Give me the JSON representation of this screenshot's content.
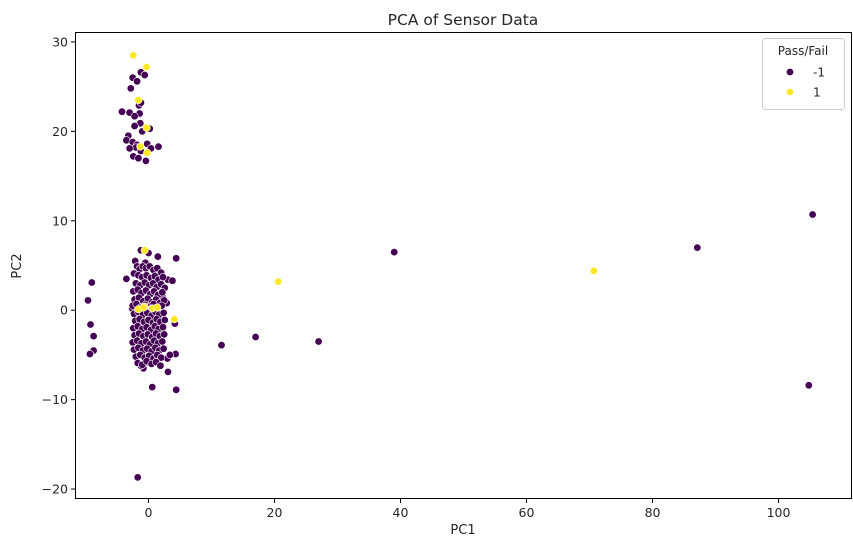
{
  "chart_data": {
    "type": "scatter",
    "title": "PCA of Sensor Data",
    "xlabel": "PC1",
    "ylabel": "PC2",
    "xlim": [
      -11.5,
      111.5
    ],
    "ylim": [
      -21,
      31
    ],
    "x_ticks": [
      0,
      20,
      40,
      60,
      80,
      100
    ],
    "y_ticks": [
      -20,
      -10,
      0,
      10,
      20,
      30
    ],
    "grid": false,
    "legend": {
      "title": "Pass/Fail",
      "placement": "top-right"
    },
    "series": [
      {
        "name": "-1",
        "color": "#440154",
        "points": [
          [
            -2.5,
            26.0
          ],
          [
            -1.2,
            26.6
          ],
          [
            -0.6,
            26.3
          ],
          [
            -1.8,
            25.6
          ],
          [
            -2.8,
            24.8
          ],
          [
            -1.5,
            22.9
          ],
          [
            -1.4,
            22.0
          ],
          [
            -4.2,
            22.2
          ],
          [
            -3.0,
            22.1
          ],
          [
            -2.2,
            21.7
          ],
          [
            -1.3,
            20.9
          ],
          [
            -2.2,
            20.6
          ],
          [
            0.2,
            20.3
          ],
          [
            -1.0,
            20.0
          ],
          [
            -3.2,
            19.5
          ],
          [
            -3.5,
            19.0
          ],
          [
            -2.5,
            18.8
          ],
          [
            -1.8,
            18.5
          ],
          [
            -0.2,
            18.6
          ],
          [
            -2.0,
            18.2
          ],
          [
            -3.0,
            18.1
          ],
          [
            0.4,
            18.1
          ],
          [
            1.6,
            18.3
          ],
          [
            -1.2,
            17.8
          ],
          [
            -2.4,
            17.2
          ],
          [
            -0.4,
            16.7
          ],
          [
            -1.6,
            17.0
          ],
          [
            -1.2,
            23.2
          ],
          [
            -3.5,
            3.5
          ],
          [
            -9.0,
            3.1
          ],
          [
            -9.6,
            1.1
          ],
          [
            -9.2,
            -1.6
          ],
          [
            -8.7,
            -2.9
          ],
          [
            -8.7,
            -4.5
          ],
          [
            -9.3,
            -4.9
          ],
          [
            -1.2,
            6.7
          ],
          [
            0.0,
            6.4
          ],
          [
            1.5,
            6.0
          ],
          [
            4.4,
            5.8
          ],
          [
            -0.5,
            5.3
          ],
          [
            3.1,
            3.4
          ],
          [
            3.8,
            3.3
          ],
          [
            2.2,
            1.5
          ],
          [
            -2.6,
            0.2
          ],
          [
            2.9,
            0.8
          ],
          [
            4.2,
            -1.5
          ],
          [
            3.0,
            -5.4
          ],
          [
            4.3,
            -4.9
          ],
          [
            3.4,
            -5.0
          ],
          [
            3.1,
            -6.9
          ],
          [
            0.6,
            -8.6
          ],
          [
            4.4,
            -8.9
          ],
          [
            -0.8,
            -6.5
          ],
          [
            -1.2,
            -6.2
          ],
          [
            -0.3,
            -5.8
          ],
          [
            -1.7,
            -18.7
          ],
          [
            11.6,
            -3.9
          ],
          [
            17.0,
            -3.0
          ],
          [
            27.0,
            -3.5
          ],
          [
            39.0,
            6.5
          ],
          [
            87.1,
            7.0
          ],
          [
            105.4,
            10.7
          ],
          [
            104.8,
            -8.4
          ],
          [
            -2.1,
            5.5
          ],
          [
            -1.8,
            4.9
          ],
          [
            -1.4,
            4.6
          ],
          [
            -0.9,
            4.9
          ],
          [
            -0.4,
            4.7
          ],
          [
            0.2,
            4.9
          ],
          [
            0.8,
            4.5
          ],
          [
            1.4,
            4.7
          ],
          [
            2.0,
            4.2
          ],
          [
            -2.3,
            4.1
          ],
          [
            -1.6,
            3.9
          ],
          [
            -1.0,
            3.7
          ],
          [
            -0.3,
            3.9
          ],
          [
            0.4,
            3.6
          ],
          [
            1.0,
            3.8
          ],
          [
            1.6,
            3.4
          ],
          [
            2.3,
            3.7
          ],
          [
            -2.0,
            3.0
          ],
          [
            -1.3,
            2.8
          ],
          [
            -0.6,
            3.1
          ],
          [
            0.1,
            2.8
          ],
          [
            0.7,
            3.0
          ],
          [
            1.3,
            2.6
          ],
          [
            2.0,
            2.9
          ],
          [
            2.6,
            2.5
          ],
          [
            -2.4,
            2.1
          ],
          [
            -1.7,
            2.3
          ],
          [
            -1.1,
            1.9
          ],
          [
            -0.4,
            2.2
          ],
          [
            0.3,
            1.8
          ],
          [
            0.9,
            2.1
          ],
          [
            1.5,
            1.7
          ],
          [
            2.2,
            2.0
          ],
          [
            -2.2,
            1.2
          ],
          [
            -1.5,
            1.4
          ],
          [
            -0.8,
            1.0
          ],
          [
            -0.1,
            1.3
          ],
          [
            0.6,
            0.9
          ],
          [
            1.2,
            1.2
          ],
          [
            1.8,
            0.8
          ],
          [
            2.5,
            1.1
          ],
          [
            -2.5,
            0.5
          ],
          [
            -1.9,
            0.7
          ],
          [
            -1.2,
            0.3
          ],
          [
            -0.5,
            0.6
          ],
          [
            0.2,
            0.4
          ],
          [
            0.8,
            0.7
          ],
          [
            1.4,
            0.2
          ],
          [
            2.1,
            0.5
          ],
          [
            -2.3,
            -0.4
          ],
          [
            -1.6,
            -0.2
          ],
          [
            -0.9,
            -0.5
          ],
          [
            -0.2,
            -0.3
          ],
          [
            0.5,
            -0.6
          ],
          [
            1.1,
            -0.2
          ],
          [
            1.7,
            -0.5
          ],
          [
            2.4,
            -0.3
          ],
          [
            -2.1,
            -1.2
          ],
          [
            -1.4,
            -1.0
          ],
          [
            -0.7,
            -1.3
          ],
          [
            0.0,
            -1.1
          ],
          [
            0.7,
            -1.4
          ],
          [
            1.3,
            -1.0
          ],
          [
            1.9,
            -1.3
          ],
          [
            2.6,
            -1.1
          ],
          [
            -2.4,
            -2.0
          ],
          [
            -1.7,
            -1.8
          ],
          [
            -1.0,
            -2.1
          ],
          [
            -0.3,
            -1.9
          ],
          [
            0.4,
            -2.2
          ],
          [
            1.0,
            -1.8
          ],
          [
            1.6,
            -2.1
          ],
          [
            2.3,
            -1.9
          ],
          [
            -2.2,
            -2.8
          ],
          [
            -1.5,
            -2.6
          ],
          [
            -0.8,
            -2.9
          ],
          [
            -0.1,
            -2.7
          ],
          [
            0.6,
            -3.0
          ],
          [
            1.2,
            -2.6
          ],
          [
            1.8,
            -2.9
          ],
          [
            2.5,
            -2.7
          ],
          [
            -2.5,
            -3.6
          ],
          [
            -1.8,
            -3.4
          ],
          [
            -1.1,
            -3.7
          ],
          [
            -0.4,
            -3.5
          ],
          [
            0.3,
            -3.8
          ],
          [
            0.9,
            -3.4
          ],
          [
            1.5,
            -3.7
          ],
          [
            2.2,
            -3.5
          ],
          [
            -2.3,
            -4.4
          ],
          [
            -1.6,
            -4.2
          ],
          [
            -0.9,
            -4.5
          ],
          [
            -0.2,
            -4.3
          ],
          [
            0.5,
            -4.6
          ],
          [
            1.1,
            -4.2
          ],
          [
            1.7,
            -4.5
          ],
          [
            2.4,
            -4.3
          ],
          [
            -2.0,
            -5.2
          ],
          [
            -1.3,
            -5.0
          ],
          [
            -0.6,
            -5.3
          ],
          [
            0.1,
            -5.1
          ],
          [
            0.8,
            -5.4
          ],
          [
            1.4,
            -5.0
          ],
          [
            2.0,
            -5.3
          ],
          [
            -1.7,
            -5.9
          ],
          [
            -1.0,
            -6.1
          ],
          [
            -0.3,
            -5.7
          ],
          [
            0.5,
            -6.0
          ],
          [
            1.2,
            -5.8
          ],
          [
            1.9,
            -6.2
          ]
        ]
      },
      {
        "name": "1",
        "color": "#fde725",
        "points": [
          [
            -2.4,
            28.5
          ],
          [
            -0.3,
            27.2
          ],
          [
            -1.6,
            23.5
          ],
          [
            -0.3,
            20.4
          ],
          [
            -1.3,
            18.3
          ],
          [
            -0.2,
            17.6
          ],
          [
            -0.6,
            6.7
          ],
          [
            -1.6,
            0.1
          ],
          [
            -0.6,
            0.4
          ],
          [
            -0.8,
            0.3
          ],
          [
            0.6,
            0.2
          ],
          [
            1.4,
            0.3
          ],
          [
            4.1,
            -1.0
          ],
          [
            20.6,
            3.2
          ],
          [
            70.7,
            4.4
          ]
        ]
      }
    ]
  }
}
